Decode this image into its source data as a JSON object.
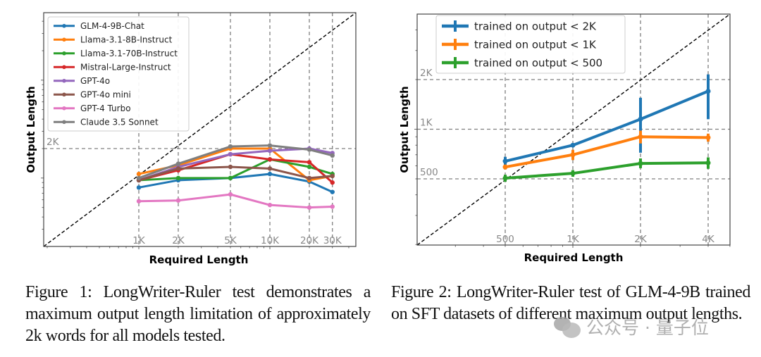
{
  "chart_data": [
    {
      "type": "line",
      "title": "",
      "xlabel": "Required Length",
      "ylabel": "Output Length",
      "xscale": "log",
      "yscale": "log",
      "x": [
        1000,
        2000,
        5000,
        10000,
        20000,
        30000
      ],
      "x_tick_labels": [
        "1K",
        "2K",
        "5K",
        "10K",
        "20K",
        "30K"
      ],
      "y_tick_labels": [
        {
          "value": 2000,
          "label": "2K"
        }
      ],
      "xlim": [
        180,
        80000
      ],
      "ylim": [
        80,
        7500
      ],
      "reference_line": "y = x (black dashed diagonal)",
      "grid": "dashed gray at x ticks and y=2K",
      "legend_position": "top-left",
      "series": [
        {
          "name": "GLM-4-9B-Chat",
          "color": "#1f77b4",
          "values": [
            800,
            950,
            1000,
            1100,
            920,
            720
          ]
        },
        {
          "name": "Llama-3.1-8B-Instruct",
          "color": "#ff7f0e",
          "values": [
            1100,
            1350,
            2000,
            2000,
            950,
            1050
          ]
        },
        {
          "name": "Llama-3.1-70B-Instruct",
          "color": "#2ca02c",
          "values": [
            950,
            1000,
            1000,
            1550,
            1300,
            1100
          ]
        },
        {
          "name": "Mistral-Large-Instruct",
          "color": "#d62728",
          "values": [
            950,
            1200,
            1750,
            1550,
            1450,
            900
          ]
        },
        {
          "name": "GPT-4o",
          "color": "#9467bd",
          "values": [
            950,
            1300,
            1750,
            1900,
            2000,
            1800
          ]
        },
        {
          "name": "GPT-4o mini",
          "color": "#8c564b",
          "values": [
            950,
            1250,
            1300,
            1250,
            1000,
            1050
          ]
        },
        {
          "name": "GPT-4 Turbo",
          "color": "#e377c2",
          "values": [
            580,
            590,
            680,
            530,
            500,
            510
          ]
        },
        {
          "name": "Claude 3.5 Sonnet",
          "color": "#7f7f7f",
          "values": [
            1000,
            1400,
            2100,
            2150,
            1950,
            1700
          ]
        }
      ]
    },
    {
      "type": "line",
      "title": "",
      "xlabel": "Required Length",
      "ylabel": "Output Length",
      "xscale": "log",
      "yscale": "log",
      "x": [
        500,
        1000,
        2000,
        4000
      ],
      "x_tick_labels": [
        "500",
        "1K",
        "2K",
        "4K"
      ],
      "y_tick_labels": [
        {
          "value": 500,
          "label": "500"
        },
        {
          "value": 1000,
          "label": "1K"
        },
        {
          "value": 2000,
          "label": "2K"
        }
      ],
      "xlim": [
        200,
        5200
      ],
      "ylim": [
        200,
        5100
      ],
      "reference_line": "y = x (black dashed diagonal)",
      "grid": "dashed gray at ticks",
      "legend_position": "top-left",
      "error_bars": true,
      "series": [
        {
          "name": "trained on output < 2K",
          "color": "#1f77b4",
          "values": [
            640,
            800,
            1150,
            1700
          ],
          "err_low": [
            600,
            780,
            720,
            1150
          ],
          "err_high": [
            680,
            820,
            1550,
            2150
          ]
        },
        {
          "name": "trained on output < 1K",
          "color": "#ff7f0e",
          "values": [
            590,
            700,
            900,
            890
          ],
          "err_low": [
            570,
            650,
            820,
            840
          ],
          "err_high": [
            610,
            750,
            980,
            940
          ]
        },
        {
          "name": "trained on output < 500",
          "color": "#2ca02c",
          "values": [
            505,
            540,
            620,
            625
          ],
          "err_low": [
            480,
            515,
            580,
            575
          ],
          "err_high": [
            530,
            565,
            665,
            675
          ]
        }
      ]
    }
  ],
  "captions": {
    "figure1": "Figure 1: LongWriter-Ruler test demonstrates a maximum output length limitation of approximately 2k words for all models tested.",
    "figure2": "Figure 2: LongWriter-Ruler test of GLM-4-9B trained on SFT datasets of different maximum output lengths."
  },
  "watermark": "公众号 · 量子位"
}
